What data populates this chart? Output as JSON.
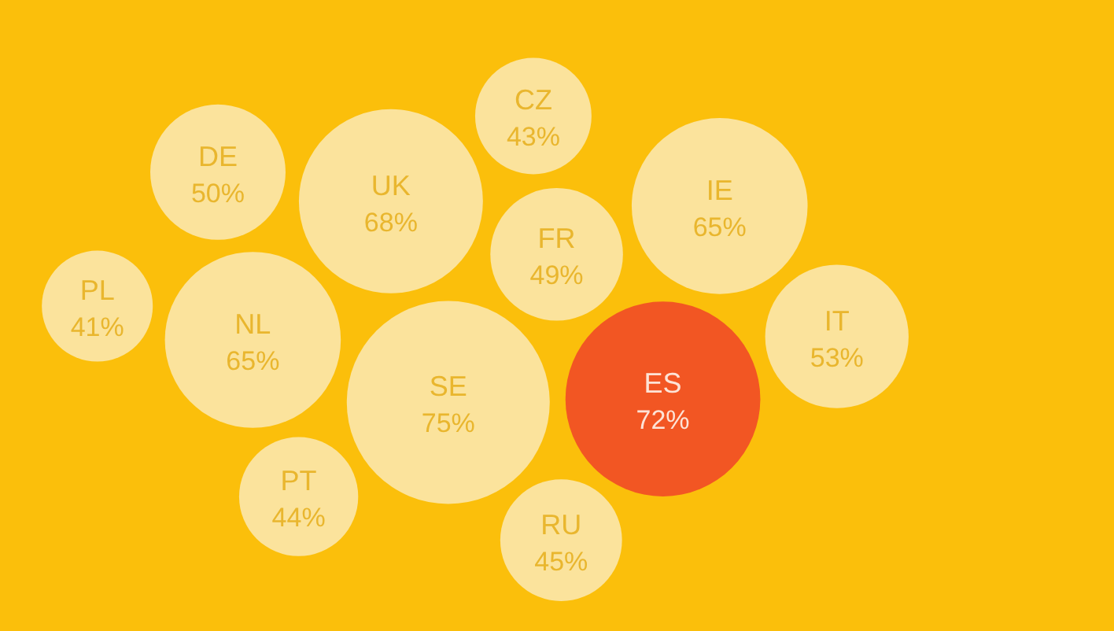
{
  "chart_data": {
    "type": "other",
    "categories": [
      "IE",
      "PT",
      "UK",
      "ES",
      "NL",
      "FR",
      "SE",
      "DE",
      "IT",
      "PL",
      "CZ",
      "RU"
    ],
    "values": [
      65,
      44,
      68,
      72,
      65,
      49,
      75,
      50,
      53,
      41,
      43,
      45
    ],
    "value_labels": [
      "65%",
      "44%",
      "68%",
      "72%",
      "65%",
      "49%",
      "75%",
      "50%",
      "53%",
      "41%",
      "43%",
      "45%"
    ],
    "colors": [
      "#fbe39c",
      "#fbe39c",
      "#fbe39c",
      "#f25623",
      "#fbe39c",
      "#fbe39c",
      "#fbe39c",
      "#fbe39c",
      "#fbe39c",
      "#fbe39c",
      "#fbe39c",
      "#fbe39c"
    ]
  }
}
